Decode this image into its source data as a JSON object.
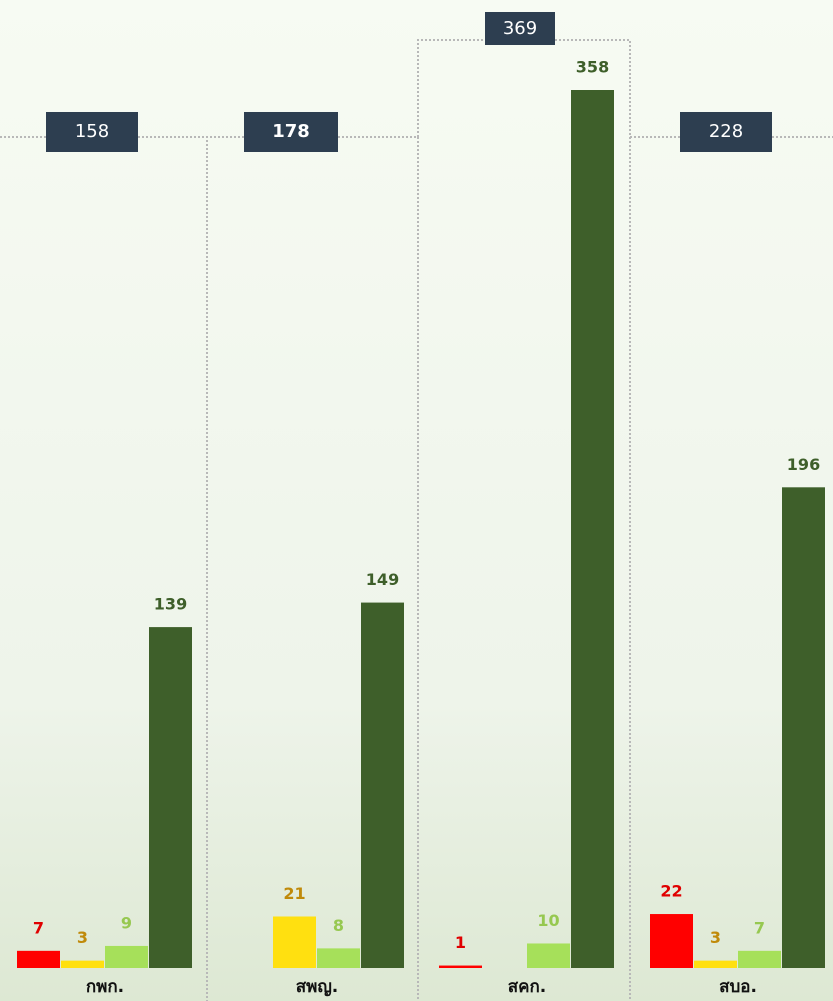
{
  "chart_data": {
    "type": "bar",
    "categories": [
      "กพก.",
      "สพญ.",
      "สคก.",
      "สบอ."
    ],
    "series": [
      {
        "color": "#ff0000",
        "label_color": "#e00000",
        "values": [
          7,
          null,
          1,
          22
        ]
      },
      {
        "color": "#ffe010",
        "label_color": "#c08a0a",
        "values": [
          3,
          21,
          null,
          3
        ]
      },
      {
        "color": "#a6e05a",
        "label_color": "#96c850",
        "values": [
          9,
          8,
          10,
          7
        ]
      },
      {
        "color": "#3e5f2a",
        "label_color": "#3e5f2a",
        "values": [
          139,
          149,
          358,
          196
        ]
      }
    ],
    "totals": [
      158,
      178,
      369,
      228
    ]
  }
}
